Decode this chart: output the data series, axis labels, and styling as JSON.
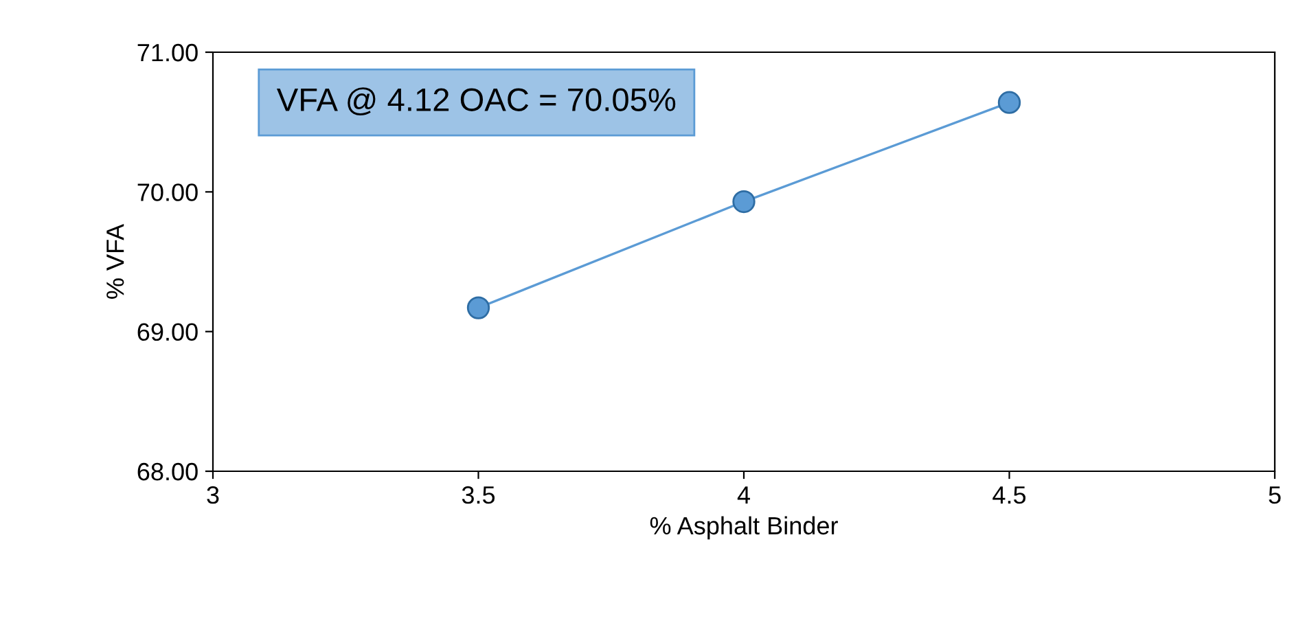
{
  "chart_data": {
    "type": "line",
    "xlabel": "% Asphalt Binder",
    "ylabel": "% VFA",
    "x": [
      3.5,
      4,
      4.5
    ],
    "series": [
      {
        "color": "#5b9bd5",
        "values": [
          69.17,
          69.93,
          70.64
        ]
      }
    ],
    "xlim": [
      3,
      5
    ],
    "xticks": [
      3,
      3.5,
      4,
      4.5,
      5
    ],
    "ylim": [
      68,
      71
    ],
    "yticks": [
      {
        "value": 68,
        "label": "68.00"
      },
      {
        "value": 69,
        "label": "69.00"
      },
      {
        "value": 70,
        "label": "70.00"
      },
      {
        "value": 71,
        "label": "71.00"
      }
    ],
    "marker": "circle",
    "line_style": "solid",
    "grid": false,
    "legend": false,
    "annotations": [
      "VFA @ 4.12 OAC = 70.05%"
    ]
  }
}
